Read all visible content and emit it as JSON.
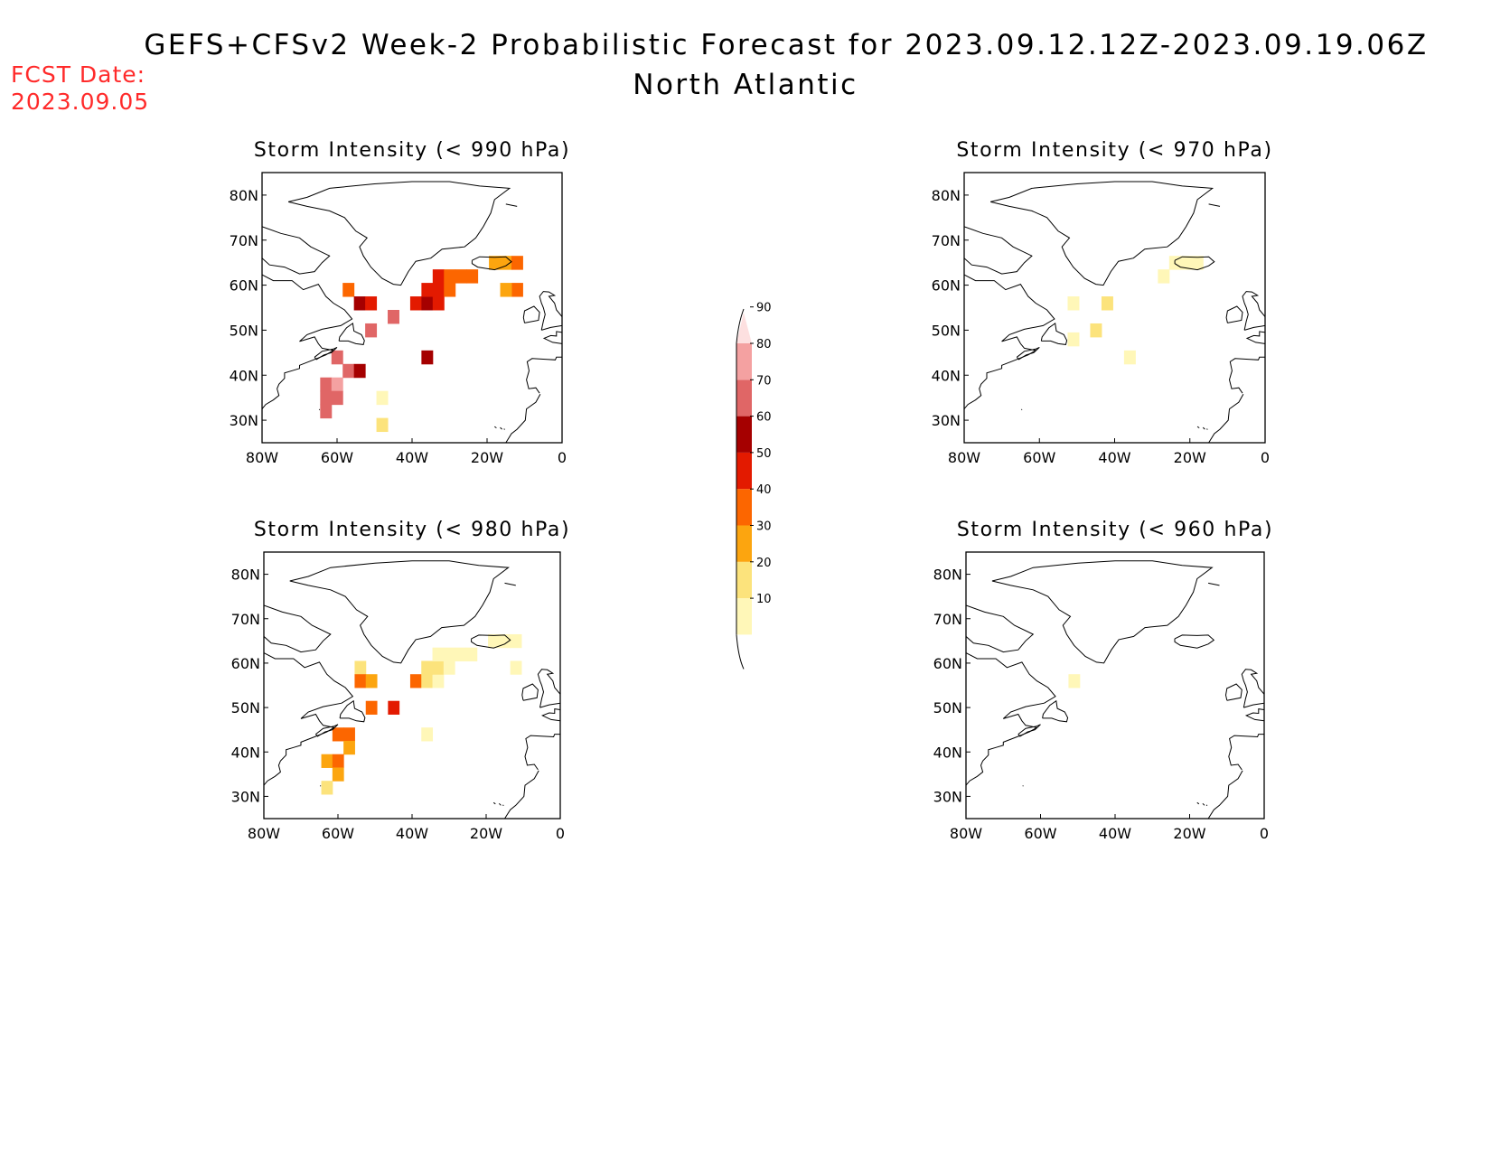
{
  "title": "GEFS+CFSv2 Week-2 Probabilistic Forecast for 2023.09.12.12Z-2023.09.19.06Z",
  "subtitle": "North Atlantic",
  "fcst_label": "FCST Date:",
  "fcst_date": "2023.09.05",
  "colors": {
    "fcst_text": "#ff2a2a",
    "levels": [
      "#fff7b8",
      "#fce37c",
      "#fca50f",
      "#fc6600",
      "#e31a00",
      "#a50000",
      "#e06666",
      "#f4a1a1",
      "#fde0e0"
    ]
  },
  "colorbar": {
    "labels": [
      "10",
      "20",
      "30",
      "40",
      "50",
      "60",
      "70",
      "80",
      "90"
    ]
  },
  "axes": {
    "x_ticks": [
      "80W",
      "60W",
      "40W",
      "20W",
      "0"
    ],
    "y_ticks": [
      "80N",
      "70N",
      "60N",
      "50N",
      "40N",
      "30N"
    ],
    "lon_range": [
      -80,
      0
    ],
    "lat_range": [
      25,
      85
    ]
  },
  "panels": [
    {
      "title": "Storm Intensity (< 990 hPa)",
      "cells": [
        {
          "lon": -57,
          "lat": 59,
          "level": 3
        },
        {
          "lon": -54,
          "lat": 56,
          "level": 5
        },
        {
          "lon": -51,
          "lat": 56,
          "level": 4
        },
        {
          "lon": -51,
          "lat": 50,
          "level": 6
        },
        {
          "lon": -45,
          "lat": 53,
          "level": 6
        },
        {
          "lon": -60,
          "lat": 44,
          "level": 6
        },
        {
          "lon": -57,
          "lat": 41,
          "level": 6
        },
        {
          "lon": -54,
          "lat": 41,
          "level": 5
        },
        {
          "lon": -63,
          "lat": 38,
          "level": 6
        },
        {
          "lon": -60,
          "lat": 38,
          "level": 7
        },
        {
          "lon": -63,
          "lat": 35,
          "level": 6
        },
        {
          "lon": -60,
          "lat": 35,
          "level": 6
        },
        {
          "lon": -63,
          "lat": 32,
          "level": 6
        },
        {
          "lon": -36,
          "lat": 44,
          "level": 5
        },
        {
          "lon": -39,
          "lat": 56,
          "level": 4
        },
        {
          "lon": -36,
          "lat": 56,
          "level": 5
        },
        {
          "lon": -33,
          "lat": 56,
          "level": 4
        },
        {
          "lon": -36,
          "lat": 59,
          "level": 4
        },
        {
          "lon": -33,
          "lat": 59,
          "level": 4
        },
        {
          "lon": -30,
          "lat": 59,
          "level": 3
        },
        {
          "lon": -33,
          "lat": 62,
          "level": 4
        },
        {
          "lon": -30,
          "lat": 62,
          "level": 3
        },
        {
          "lon": -27,
          "lat": 62,
          "level": 3
        },
        {
          "lon": -24,
          "lat": 62,
          "level": 3
        },
        {
          "lon": -18,
          "lat": 65,
          "level": 2
        },
        {
          "lon": -15,
          "lat": 65,
          "level": 2
        },
        {
          "lon": -12,
          "lat": 65,
          "level": 3
        },
        {
          "lon": -12,
          "lat": 59,
          "level": 3
        },
        {
          "lon": -15,
          "lat": 59,
          "level": 2
        },
        {
          "lon": -48,
          "lat": 35,
          "level": 0
        },
        {
          "lon": -48,
          "lat": 29,
          "level": 1
        }
      ]
    },
    {
      "title": "Storm Intensity (< 970 hPa)",
      "cells": [
        {
          "lon": -51,
          "lat": 56,
          "level": 0
        },
        {
          "lon": -42,
          "lat": 56,
          "level": 1
        },
        {
          "lon": -45,
          "lat": 50,
          "level": 1
        },
        {
          "lon": -51,
          "lat": 48,
          "level": 0
        },
        {
          "lon": -24,
          "lat": 65,
          "level": 0
        },
        {
          "lon": -21,
          "lat": 65,
          "level": 0
        },
        {
          "lon": -18,
          "lat": 65,
          "level": 0
        },
        {
          "lon": -27,
          "lat": 62,
          "level": 0
        },
        {
          "lon": -36,
          "lat": 44,
          "level": 0
        }
      ]
    },
    {
      "title": "Storm Intensity (< 980 hPa)",
      "cells": [
        {
          "lon": -54,
          "lat": 59,
          "level": 1
        },
        {
          "lon": -54,
          "lat": 56,
          "level": 3
        },
        {
          "lon": -51,
          "lat": 56,
          "level": 2
        },
        {
          "lon": -51,
          "lat": 50,
          "level": 3
        },
        {
          "lon": -45,
          "lat": 50,
          "level": 4
        },
        {
          "lon": -60,
          "lat": 44,
          "level": 3
        },
        {
          "lon": -57,
          "lat": 44,
          "level": 3
        },
        {
          "lon": -57,
          "lat": 41,
          "level": 2
        },
        {
          "lon": -63,
          "lat": 38,
          "level": 2
        },
        {
          "lon": -60,
          "lat": 38,
          "level": 3
        },
        {
          "lon": -60,
          "lat": 35,
          "level": 2
        },
        {
          "lon": -63,
          "lat": 32,
          "level": 1
        },
        {
          "lon": -39,
          "lat": 56,
          "level": 3
        },
        {
          "lon": -36,
          "lat": 56,
          "level": 1
        },
        {
          "lon": -33,
          "lat": 56,
          "level": 0
        },
        {
          "lon": -36,
          "lat": 59,
          "level": 1
        },
        {
          "lon": -33,
          "lat": 59,
          "level": 1
        },
        {
          "lon": -30,
          "lat": 59,
          "level": 0
        },
        {
          "lon": -33,
          "lat": 62,
          "level": 0
        },
        {
          "lon": -30,
          "lat": 62,
          "level": 0
        },
        {
          "lon": -27,
          "lat": 62,
          "level": 0
        },
        {
          "lon": -24,
          "lat": 62,
          "level": 0
        },
        {
          "lon": -18,
          "lat": 65,
          "level": 0
        },
        {
          "lon": -15,
          "lat": 65,
          "level": 0
        },
        {
          "lon": -12,
          "lat": 65,
          "level": 0
        },
        {
          "lon": -12,
          "lat": 59,
          "level": 0
        },
        {
          "lon": -36,
          "lat": 44,
          "level": 0
        }
      ]
    },
    {
      "title": "Storm Intensity (< 960 hPa)",
      "cells": [
        {
          "lon": -51,
          "lat": 56,
          "level": 0
        }
      ]
    }
  ]
}
